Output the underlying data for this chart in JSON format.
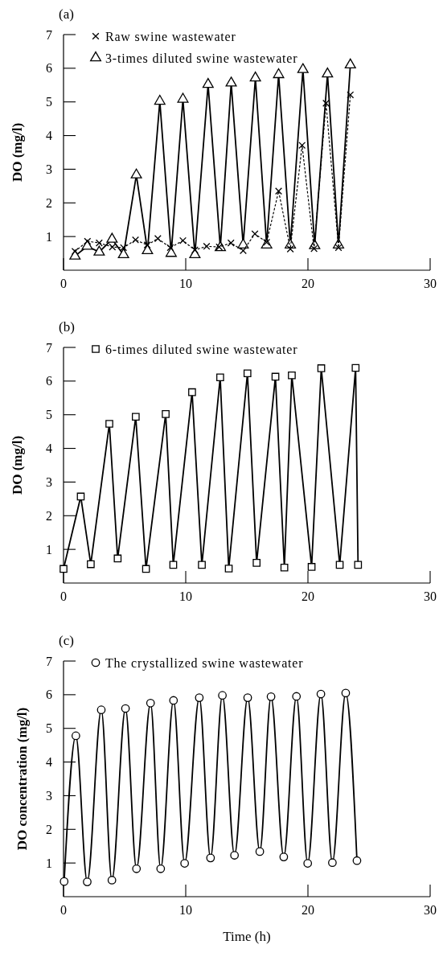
{
  "chart_data": [
    {
      "type": "line",
      "title": "(a)",
      "ylabel": "DO (mg/l)",
      "xlim": [
        0,
        30
      ],
      "xticks": [
        0,
        10,
        20,
        30
      ],
      "ylim": [
        0,
        7
      ],
      "yticks": [
        1,
        2,
        3,
        4,
        5,
        6,
        7
      ],
      "legend": "top left",
      "grid": false,
      "series": [
        {
          "name": "Raw swine wastewater",
          "color": "#000000",
          "marker": "cross",
          "line_style": "dotted",
          "x": [
            0.94,
            1.96,
            2.92,
            4.0,
            4.91,
            5.89,
            6.85,
            7.72,
            8.74,
            9.77,
            10.75,
            11.71,
            12.74,
            13.7,
            14.7,
            15.66,
            16.62,
            17.6,
            18.56,
            19.52,
            20.5,
            21.48,
            22.5,
            23.47
          ],
          "values": [
            0.56,
            0.86,
            0.81,
            0.69,
            0.67,
            0.9,
            0.75,
            0.94,
            0.67,
            0.88,
            0.6,
            0.71,
            0.69,
            0.81,
            0.58,
            1.08,
            0.83,
            2.35,
            0.63,
            3.71,
            0.64,
            4.96,
            0.67,
            5.21
          ]
        },
        {
          "name": "3-times diluted swine wastewater",
          "color": "#000000",
          "marker": "triangle",
          "line_style": "solid",
          "x": [
            0.94,
            1.94,
            2.92,
            3.97,
            4.91,
            5.96,
            6.87,
            7.88,
            8.81,
            9.77,
            10.75,
            11.83,
            12.83,
            13.72,
            14.7,
            15.7,
            16.62,
            17.6,
            18.56,
            19.59,
            20.55,
            21.6,
            22.5,
            23.47
          ],
          "values": [
            0.42,
            0.71,
            0.54,
            0.92,
            0.46,
            2.83,
            0.58,
            5.02,
            0.5,
            5.08,
            0.46,
            5.52,
            0.67,
            5.56,
            0.75,
            5.71,
            0.75,
            5.81,
            0.75,
            5.96,
            0.73,
            5.83,
            0.75,
            6.1
          ]
        }
      ]
    },
    {
      "type": "line",
      "title": "(b)",
      "ylabel": "DO (mg/l)",
      "xlim": [
        0,
        30
      ],
      "xticks": [
        0,
        10,
        20,
        30
      ],
      "ylim": [
        0,
        7
      ],
      "yticks": [
        1,
        2,
        3,
        4,
        5,
        6,
        7
      ],
      "legend": "top left",
      "grid": false,
      "series": [
        {
          "name": "6-times diluted swine wastewater",
          "color": "#000000",
          "marker": "square",
          "line_style": "solid",
          "x": [
            0,
            1.41,
            2.23,
            3.75,
            4.43,
            5.91,
            6.75,
            8.36,
            8.98,
            10.52,
            11.32,
            12.82,
            13.52,
            15.05,
            15.8,
            17.34,
            18.07,
            18.68,
            20.3,
            21.09,
            22.6,
            23.9,
            24.1
          ],
          "values": [
            0.42,
            2.57,
            0.56,
            4.73,
            0.73,
            4.94,
            0.42,
            5.02,
            0.54,
            5.67,
            0.54,
            6.11,
            0.43,
            6.23,
            0.6,
            6.13,
            0.46,
            6.17,
            0.48,
            6.38,
            0.54,
            6.39,
            0.54
          ]
        }
      ]
    },
    {
      "type": "line",
      "title": "(c)",
      "xlabel": "Time (h)",
      "ylabel": "DO concentration (mg/l)",
      "xlim": [
        0,
        30
      ],
      "xticks": [
        0,
        10,
        20,
        30
      ],
      "ylim": [
        0,
        7
      ],
      "yticks": [
        1,
        2,
        3,
        4,
        5,
        6,
        7
      ],
      "legend": "top left",
      "grid": false,
      "series": [
        {
          "name": "The crystallized swine wastewater",
          "color": "#000000",
          "marker": "circle",
          "line_style": "solid",
          "x": [
            0.05,
            1.01,
            1.94,
            3.09,
            3.96,
            5.07,
            5.97,
            7.12,
            7.95,
            9.0,
            9.91,
            11.11,
            12.03,
            13.0,
            13.99,
            15.07,
            16.06,
            16.98,
            18.02,
            19.06,
            19.98,
            21.06,
            22.0,
            23.09,
            24.01
          ],
          "values": [
            0.45,
            4.78,
            0.44,
            5.55,
            0.49,
            5.59,
            0.83,
            5.75,
            0.83,
            5.83,
            0.99,
            5.91,
            1.15,
            5.98,
            1.23,
            5.91,
            1.34,
            5.94,
            1.18,
            5.95,
            0.99,
            6.02,
            1.01,
            6.05,
            1.07
          ]
        }
      ]
    }
  ]
}
